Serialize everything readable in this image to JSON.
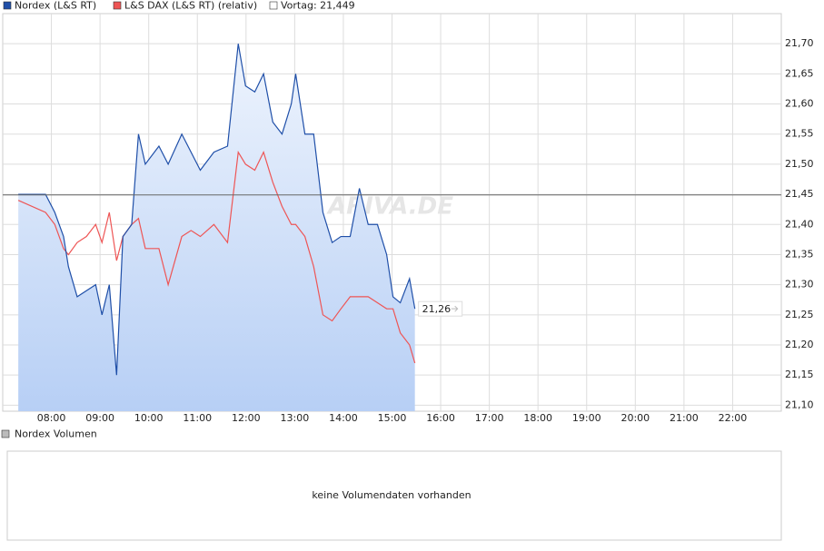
{
  "chart_data": {
    "type": "line",
    "x": [
      7.32,
      7.88,
      8.07,
      8.25,
      8.35,
      8.53,
      8.72,
      8.91,
      9.04,
      9.19,
      9.34,
      9.47,
      9.65,
      9.79,
      9.93,
      10.21,
      10.4,
      10.68,
      10.87,
      11.06,
      11.34,
      11.62,
      11.84,
      11.99,
      12.18,
      12.36,
      12.55,
      12.74,
      12.93,
      13.02,
      13.21,
      13.39,
      13.58,
      13.77,
      13.95,
      14.14,
      14.33,
      14.51,
      14.7,
      14.89,
      15.02,
      15.17,
      15.36,
      15.47
    ],
    "series": [
      {
        "name": "Nordex (L&S RT)",
        "color": "#1f4fa8",
        "values": [
          21.45,
          21.45,
          21.42,
          21.38,
          21.33,
          21.28,
          21.29,
          21.3,
          21.25,
          21.3,
          21.15,
          21.38,
          21.4,
          21.55,
          21.5,
          21.53,
          21.5,
          21.55,
          21.52,
          21.49,
          21.52,
          21.53,
          21.7,
          21.63,
          21.62,
          21.65,
          21.57,
          21.55,
          21.6,
          21.65,
          21.55,
          21.55,
          21.42,
          21.37,
          21.38,
          21.38,
          21.46,
          21.4,
          21.4,
          21.35,
          21.28,
          21.27,
          21.31,
          21.26
        ]
      },
      {
        "name": "L&S DAX (L&S RT) (relativ)",
        "color": "#ee5555",
        "values": [
          21.44,
          21.42,
          21.4,
          21.36,
          21.35,
          21.37,
          21.38,
          21.4,
          21.37,
          21.42,
          21.34,
          21.38,
          21.4,
          21.41,
          21.36,
          21.36,
          21.3,
          21.38,
          21.39,
          21.38,
          21.4,
          21.37,
          21.52,
          21.5,
          21.49,
          21.52,
          21.47,
          21.43,
          21.4,
          21.4,
          21.38,
          21.33,
          21.25,
          21.24,
          21.26,
          21.28,
          21.28,
          21.28,
          21.27,
          21.26,
          21.26,
          21.22,
          21.2,
          21.17
        ]
      }
    ],
    "reference": {
      "name": "Vortag: 21,449",
      "value": 21.449
    },
    "last_value_label": "21,26",
    "watermark": "ARIVA.DE",
    "xlim": [
      7,
      23
    ],
    "ylim": [
      21.09,
      21.75
    ],
    "xticks": [
      {
        "value": 8,
        "label": "08:00"
      },
      {
        "value": 9,
        "label": "09:00"
      },
      {
        "value": 10,
        "label": "10:00"
      },
      {
        "value": 11,
        "label": "11:00"
      },
      {
        "value": 12,
        "label": "12:00"
      },
      {
        "value": 13,
        "label": "13:00"
      },
      {
        "value": 14,
        "label": "14:00"
      },
      {
        "value": 15,
        "label": "15:00"
      },
      {
        "value": 16,
        "label": "16:00"
      },
      {
        "value": 17,
        "label": "17:00"
      },
      {
        "value": 18,
        "label": "18:00"
      },
      {
        "value": 19,
        "label": "19:00"
      },
      {
        "value": 20,
        "label": "20:00"
      },
      {
        "value": 21,
        "label": "21:00"
      },
      {
        "value": 22,
        "label": "22:00"
      }
    ],
    "yticks": [
      {
        "value": 21.1,
        "label": "21,10"
      },
      {
        "value": 21.15,
        "label": "21,15"
      },
      {
        "value": 21.2,
        "label": "21,20"
      },
      {
        "value": 21.25,
        "label": "21,25"
      },
      {
        "value": 21.3,
        "label": "21,30"
      },
      {
        "value": 21.35,
        "label": "21,35"
      },
      {
        "value": 21.4,
        "label": "21,40"
      },
      {
        "value": 21.45,
        "label": "21,45"
      },
      {
        "value": 21.5,
        "label": "21,50"
      },
      {
        "value": 21.55,
        "label": "21,55"
      },
      {
        "value": 21.6,
        "label": "21,60"
      },
      {
        "value": 21.65,
        "label": "21,65"
      },
      {
        "value": 21.7,
        "label": "21,70"
      }
    ],
    "grid": true,
    "volume_panel": {
      "title": "Nordex Volumen",
      "message": "keine Volumendaten vorhanden"
    }
  }
}
